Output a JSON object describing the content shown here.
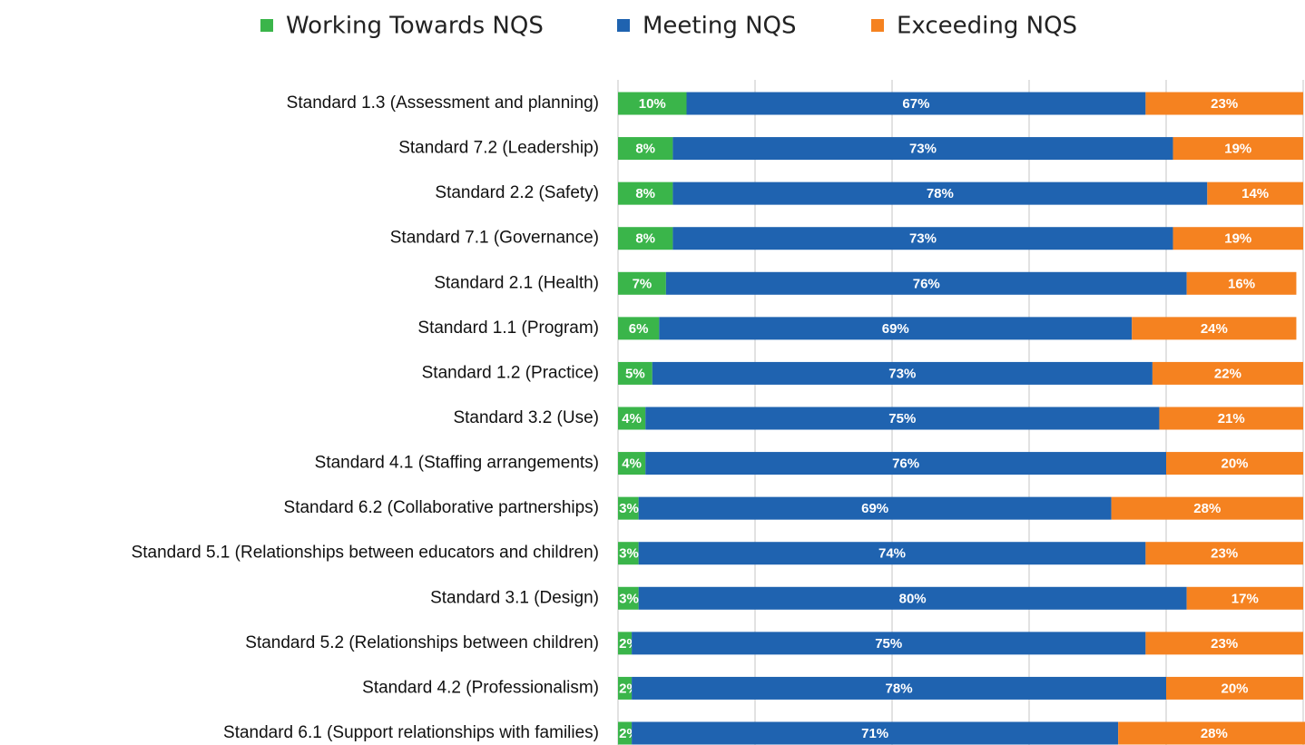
{
  "chart_data": {
    "type": "stacked_bar_horizontal",
    "categories": [
      "Standard 1.3 (Assessment and planning)",
      "Standard 7.2 (Leadership)",
      "Standard 2.2 (Safety)",
      "Standard 7.1 (Governance)",
      "Standard 2.1 (Health)",
      "Standard 1.1 (Program)",
      "Standard 1.2 (Practice)",
      "Standard 3.2 (Use)",
      "Standard 4.1 (Staffing arrangements)",
      "Standard 6.2 (Collaborative partnerships)",
      "Standard 5.1 (Relationships between educators and children)",
      "Standard 3.1 (Design)",
      "Standard 5.2 (Relationships between children)",
      "Standard 4.2 (Professionalism)",
      "Standard 6.1 (Support relationships with families)"
    ],
    "series": [
      {
        "name": "Working Towards NQS",
        "color": "#3ab54a",
        "values": [
          10,
          8,
          8,
          8,
          7,
          6,
          5,
          4,
          4,
          3,
          3,
          3,
          2,
          2,
          2
        ],
        "value_labels": [
          "10%",
          "8%",
          "8%",
          "8%",
          "7%",
          "6%",
          "5%",
          "4%",
          "4%",
          "3%",
          "3%",
          "3%",
          "2%",
          "2%",
          "2%"
        ]
      },
      {
        "name": "Meeting NQS",
        "color": "#1f63b0",
        "values": [
          67,
          73,
          78,
          73,
          76,
          69,
          73,
          75,
          76,
          69,
          74,
          80,
          75,
          78,
          71
        ],
        "value_labels": [
          "67%",
          "73%",
          "78%",
          "73%",
          "76%",
          "69%",
          "73%",
          "75%",
          "76%",
          "69%",
          "74%",
          "80%",
          "75%",
          "78%",
          "71%"
        ]
      },
      {
        "name": "Exceeding NQS",
        "color": "#f58220",
        "values": [
          23,
          19,
          14,
          19,
          16,
          24,
          22,
          21,
          20,
          28,
          23,
          17,
          23,
          20,
          28
        ],
        "value_labels": [
          "23%",
          "19%",
          "14%",
          "19%",
          "16%",
          "24%",
          "22%",
          "21%",
          "20%",
          "28%",
          "23%",
          "17%",
          "23%",
          "20%",
          "28%"
        ]
      }
    ],
    "xlim": [
      0,
      100
    ],
    "xticks": [
      0,
      20,
      40,
      60,
      80,
      100
    ],
    "grid": true
  }
}
